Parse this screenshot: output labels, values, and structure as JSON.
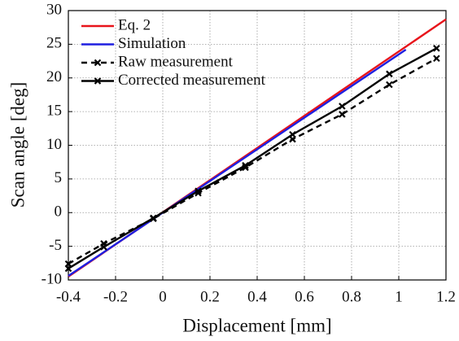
{
  "chart_data": {
    "type": "line",
    "xlabel": "Displacement [mm]",
    "ylabel": "Scan angle [deg]",
    "xlim": [
      -0.4,
      1.2
    ],
    "xticks": [
      -0.4,
      -0.2,
      0,
      0.2,
      0.4,
      0.6,
      0.8,
      1,
      1.2
    ],
    "ylim": [
      -10,
      30
    ],
    "yticks": [
      -10,
      -5,
      0,
      5,
      10,
      15,
      20,
      25,
      30
    ],
    "grid": true,
    "legend": "upper left",
    "series": [
      {
        "name": "Eq. 2",
        "color": "#e8141b",
        "style": "solid",
        "marker": "none",
        "x": [
          -0.4,
          1.2
        ],
        "values": [
          -9.5,
          28.7
        ]
      },
      {
        "name": "Simulation",
        "color": "#1f1fe0",
        "style": "solid",
        "marker": "none",
        "x": [
          -0.4,
          1.03
        ],
        "values": [
          -9.4,
          24.2
        ]
      },
      {
        "name": "Raw measurement",
        "color": "#000000",
        "style": "dashed",
        "marker": "x",
        "x": [
          -0.4,
          -0.25,
          -0.04,
          0.15,
          0.35,
          0.55,
          0.76,
          0.96,
          1.16
        ],
        "values": [
          -7.6,
          -4.6,
          -0.9,
          2.9,
          6.7,
          10.9,
          14.6,
          19.0,
          22.9
        ]
      },
      {
        "name": "Corrected measurement",
        "color": "#000000",
        "style": "solid",
        "marker": "x",
        "x": [
          -0.4,
          -0.25,
          -0.04,
          0.15,
          0.35,
          0.55,
          0.76,
          0.96,
          1.16
        ],
        "values": [
          -8.3,
          -5.1,
          -0.8,
          3.2,
          7.0,
          11.6,
          15.8,
          20.6,
          24.4
        ]
      }
    ]
  }
}
